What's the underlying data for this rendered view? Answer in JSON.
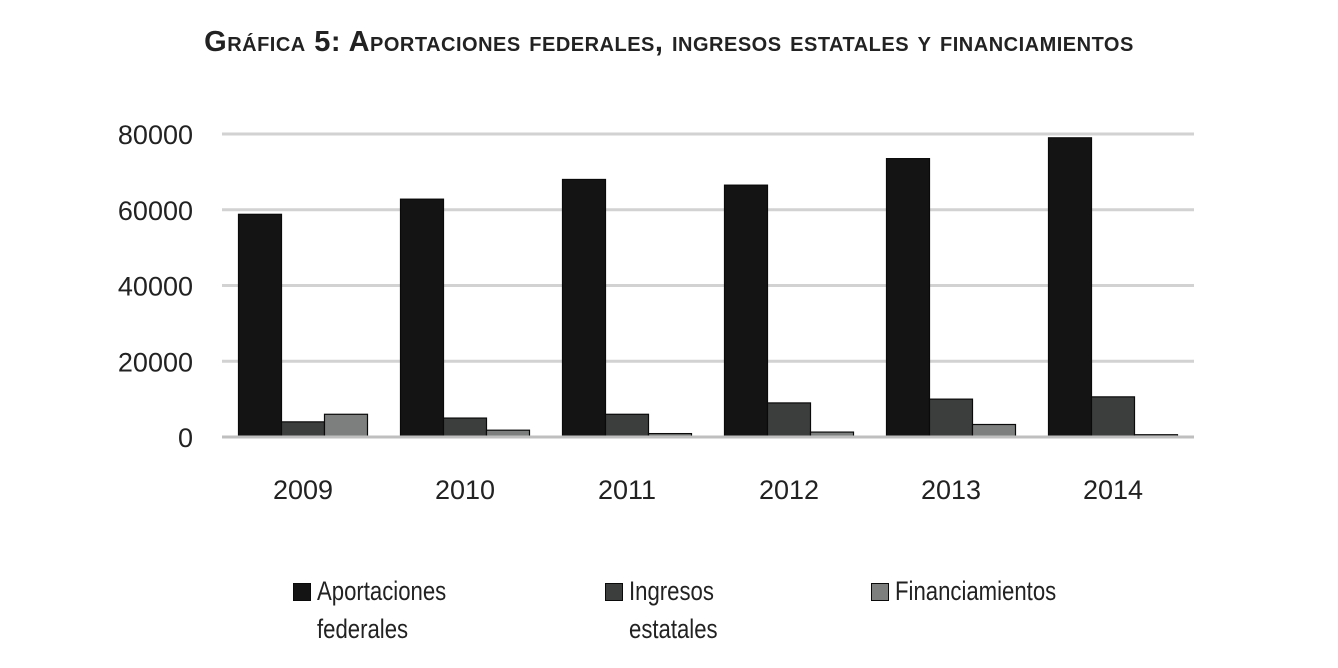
{
  "chart_data": {
    "type": "bar",
    "title": "Gráfica 5: Aportaciones federales, ingresos estatales y financiamientos",
    "xlabel": "",
    "ylabel": "",
    "categories": [
      "2009",
      "2010",
      "2011",
      "2012",
      "2013",
      "2014"
    ],
    "ylim": [
      0,
      80000
    ],
    "yticks": [
      0,
      20000,
      40000,
      60000,
      80000
    ],
    "ytick_labels": [
      "0",
      "20000",
      "40000",
      "60000",
      "80000"
    ],
    "grid": true,
    "legend_position": "bottom",
    "series": [
      {
        "name": "Aportaciones federales",
        "label_lines": [
          "Aportaciones",
          "federales"
        ],
        "color": "#141414",
        "values": [
          58800,
          62800,
          68000,
          66500,
          73500,
          79000
        ]
      },
      {
        "name": "Ingresos estatales",
        "label_lines": [
          "Ingresos",
          "estatales"
        ],
        "color": "#3c3d3d",
        "values": [
          4000,
          5000,
          6000,
          9000,
          10000,
          10600
        ]
      },
      {
        "name": "Financiamientos",
        "label_lines": [
          "Financiamientos"
        ],
        "color": "#7d7f7f",
        "values": [
          6000,
          1800,
          900,
          1300,
          3300,
          600
        ]
      }
    ]
  }
}
